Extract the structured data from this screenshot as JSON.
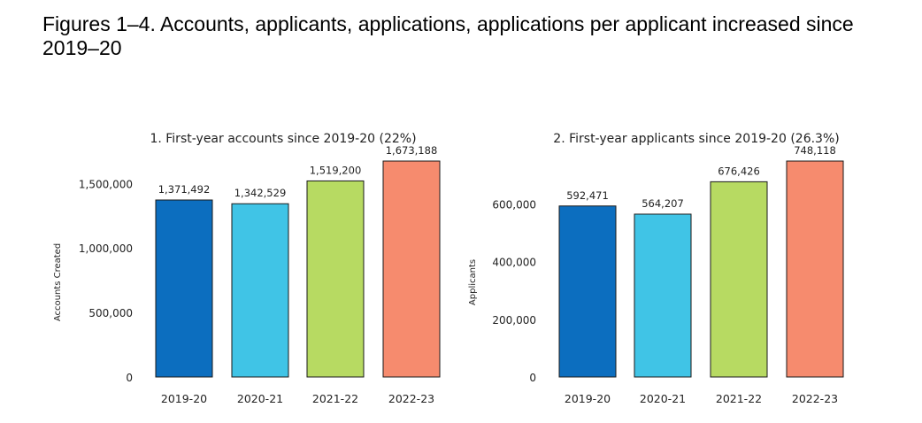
{
  "page": {
    "title": "Figures 1–4. Accounts, applicants, applications, applications per applicant increased since 2019–20"
  },
  "chart_data": [
    {
      "type": "bar",
      "title": "1. First-year accounts since 2019-20 (22%)",
      "xlabel": "",
      "ylabel": "Accounts Created",
      "categories": [
        "2019-20",
        "2020-21",
        "2021-22",
        "2022-23"
      ],
      "values": [
        1371492,
        1342529,
        1519200,
        1673188
      ],
      "value_labels": [
        "1,371,492",
        "1,342,529",
        "1,519,200",
        "1,673,188"
      ],
      "yticks": [
        0,
        500000,
        1000000,
        1500000
      ],
      "ytick_labels": [
        "0",
        "500,000",
        "1,000,000",
        "1,500,000"
      ],
      "ylim": [
        0,
        1673188
      ],
      "colors": [
        "#0c6ebf",
        "#40c4e6",
        "#b7da62",
        "#f68b6e"
      ],
      "grid": false
    },
    {
      "type": "bar",
      "title": "2. First-year applicants since 2019-20 (26.3%)",
      "xlabel": "",
      "ylabel": "Applicants",
      "categories": [
        "2019-20",
        "2020-21",
        "2021-22",
        "2022-23"
      ],
      "values": [
        592471,
        564207,
        676426,
        748118
      ],
      "value_labels": [
        "592,471",
        "564,207",
        "676,426",
        "748,118"
      ],
      "yticks": [
        0,
        200000,
        400000,
        600000
      ],
      "ytick_labels": [
        "0",
        "200,000",
        "400,000",
        "600,000"
      ],
      "ylim": [
        0,
        748118
      ],
      "colors": [
        "#0c6ebf",
        "#40c4e6",
        "#b7da62",
        "#f68b6e"
      ],
      "grid": false
    }
  ]
}
